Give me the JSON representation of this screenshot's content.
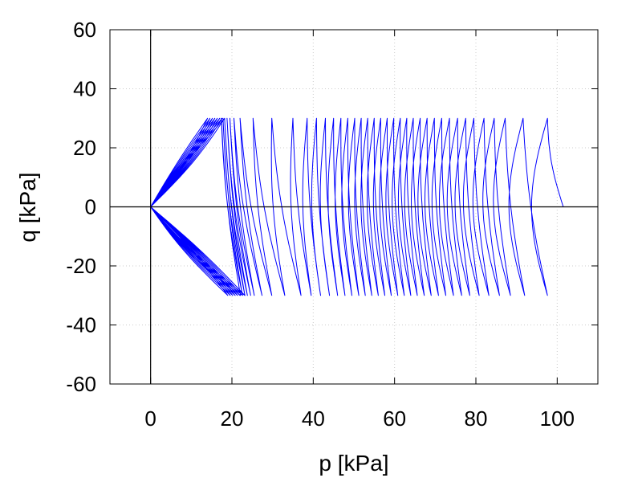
{
  "chart_data": {
    "type": "line",
    "title": "",
    "xlabel": "p [kPa]",
    "ylabel": "q [kPa]",
    "xlim": [
      -10,
      110
    ],
    "ylim": [
      -60,
      60
    ],
    "xticks": [
      0,
      20,
      40,
      60,
      80,
      100
    ],
    "yticks": [
      -60,
      -40,
      -20,
      0,
      20,
      40,
      60
    ],
    "xtick_labels": [
      "0",
      "20",
      "40",
      "60",
      "80",
      "100"
    ],
    "ytick_labels": [
      "-60",
      "-40",
      "-20",
      "0",
      "20",
      "40",
      "60"
    ],
    "grid": true,
    "zero_lines": true,
    "legend": "none",
    "colors": {
      "series": "#0000ff",
      "axes": "#000000",
      "grid": "#cccccc"
    },
    "series": [
      {
        "description_values_source": "stress path cycles: each cycle reaches q=+30 and q=-30 kPa",
        "cycle_amplitude_q": 30,
        "start": [
          101.5,
          0
        ],
        "min_p_reached": 0,
        "turning_points_p_at_q_pos30": [
          97.6,
          91.6,
          87.2,
          84.5,
          82.0,
          79.5,
          77.5,
          75.5,
          73.5,
          71.6,
          69.8,
          68.0,
          66.3,
          64.6,
          63.0,
          61.4,
          59.8,
          58.2,
          56.6,
          55.0,
          53.4,
          51.8,
          50.2,
          48.5,
          46.8,
          45.0,
          43.0,
          40.8,
          38.5,
          35.0,
          29.8,
          25.2,
          22.0,
          20.5,
          19.5,
          18.8,
          18.2,
          17.8,
          17.4
        ],
        "turning_points_p_at_q_neg30": [
          97.6,
          92.0,
          88.5,
          85.8,
          83.2,
          80.8,
          78.5,
          76.5,
          74.5,
          72.6,
          70.8,
          69.0,
          67.3,
          65.6,
          64.0,
          62.4,
          60.8,
          59.2,
          57.6,
          56.0,
          54.4,
          52.8,
          51.2,
          49.5,
          47.8,
          46.0,
          44.0,
          41.8,
          39.5,
          37.0,
          33.0,
          29.8,
          27.4,
          25.5,
          24.6,
          23.8,
          23.2,
          22.6,
          22.1
        ]
      }
    ]
  }
}
